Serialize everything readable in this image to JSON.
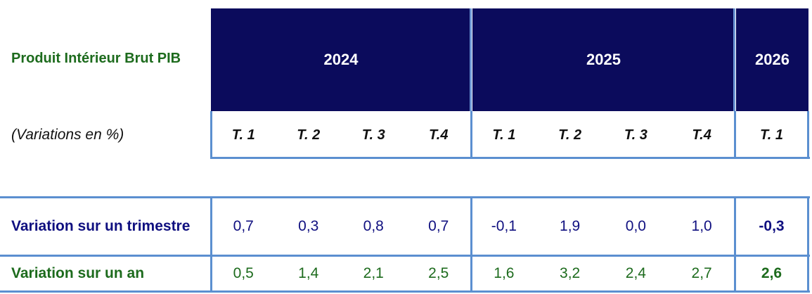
{
  "header": {
    "title": "Produit Intérieur Brut PIB",
    "subtitle": "(Variations en %)",
    "years": [
      "2024",
      "2025",
      "2026"
    ],
    "quarters": [
      "T. 1",
      "T. 2",
      "T. 3",
      "T.4",
      "T. 1",
      "T. 2",
      "T. 3",
      "T.4",
      "T. 1"
    ]
  },
  "table": {
    "rows": [
      {
        "label": "Variation sur un trimestre",
        "values": [
          "0,7",
          "0,3",
          "0,8",
          "0,7",
          "-0,1",
          "1,9",
          "0,0",
          "1,0",
          "-0,3"
        ]
      },
      {
        "label": "Variation sur un an",
        "values": [
          "0,5",
          "1,4",
          "2,1",
          "2,5",
          "1,6",
          "3,2",
          "2,4",
          "2,7",
          "2,6"
        ]
      }
    ]
  }
}
